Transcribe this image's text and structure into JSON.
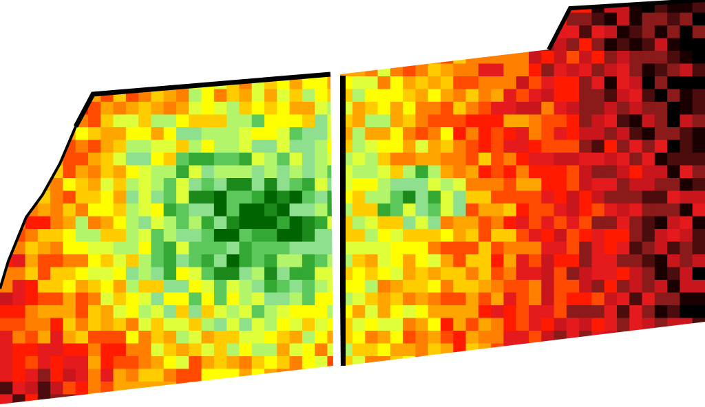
{
  "map": {
    "type": "field-yield-heatmap",
    "background_color": "#ffffff",
    "edge_color": "#000000",
    "grid": {
      "cols": 56,
      "rows": 32
    },
    "palette": [
      "#000000",
      "#1a0000",
      "#4a0c0c",
      "#8b1a1a",
      "#c8161c",
      "#e41a1c",
      "#ff1a00",
      "#ff4a00",
      "#ff7f00",
      "#ffa500",
      "#ffcc00",
      "#ffff00",
      "#dfff3a",
      "#b3f56a",
      "#8ee08e",
      "#5cc85c",
      "#33a833",
      "#1b8a1b",
      "#006400"
    ],
    "gradients": [
      {
        "field": "left-field",
        "center_col": 20,
        "center_row": 17,
        "spread": 11,
        "base_level": 16
      },
      {
        "field": "right-field",
        "center_col": 33,
        "center_row": 15,
        "spread": 20,
        "base_level": 8
      }
    ],
    "fields": [
      {
        "name": "left-field",
        "bound": "left"
      },
      {
        "name": "right-field",
        "bound": "right"
      }
    ]
  }
}
